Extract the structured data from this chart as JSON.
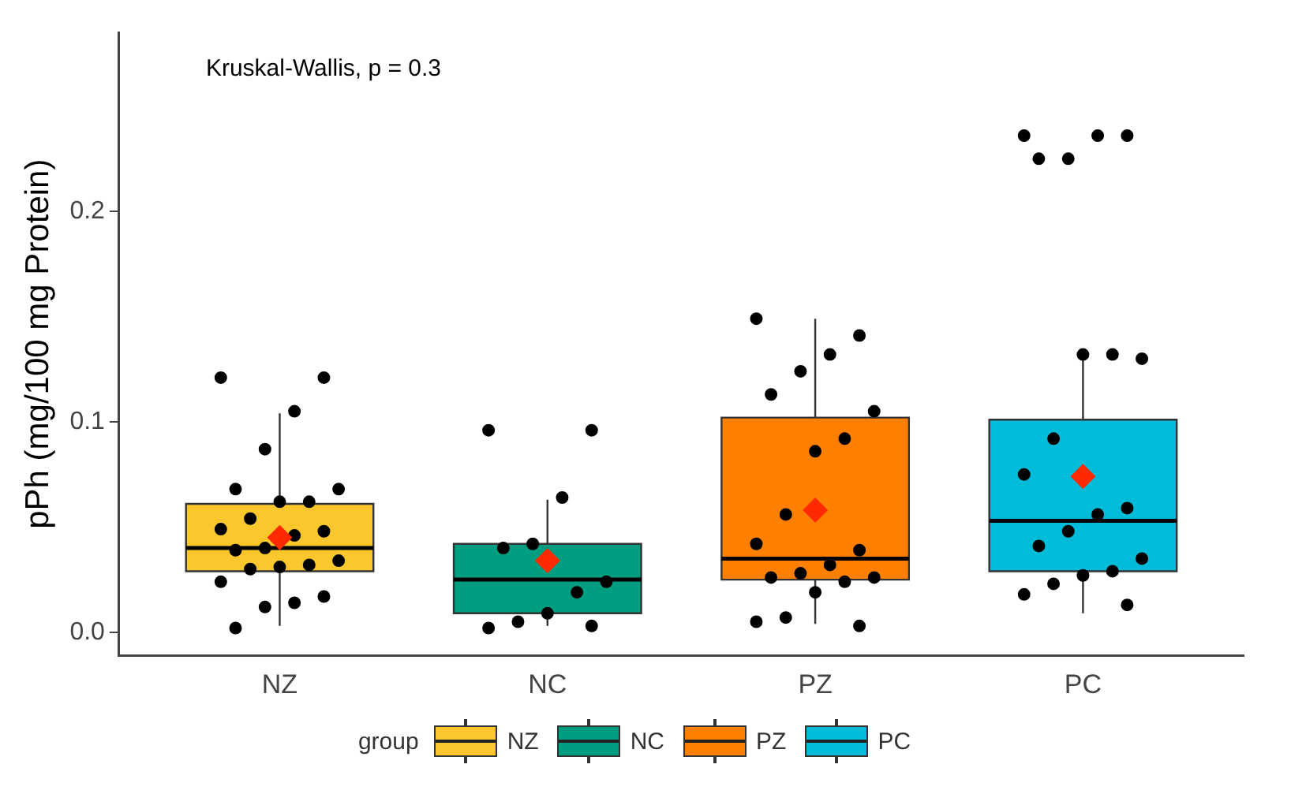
{
  "chart_data": {
    "type": "box",
    "categories": [
      "NZ",
      "NC",
      "PZ",
      "PC"
    ],
    "series": [
      {
        "type": "box",
        "name": "NZ",
        "color": "#fcc72c",
        "boxes": [
          {
            "low": 0.003,
            "q1": 0.029,
            "median": 0.04,
            "q3": 0.061,
            "high": 0.104,
            "mean": 0.045
          },
          null,
          null,
          null
        ]
      },
      {
        "type": "box",
        "name": "NC",
        "color": "#009e80",
        "boxes": [
          null,
          {
            "low": 0.003,
            "q1": 0.009,
            "median": 0.025,
            "q3": 0.042,
            "high": 0.063,
            "mean": 0.034
          },
          null,
          null
        ]
      },
      {
        "type": "box",
        "name": "PZ",
        "color": "#ff7f00",
        "boxes": [
          null,
          null,
          {
            "low": 0.004,
            "q1": 0.025,
            "median": 0.035,
            "q3": 0.102,
            "high": 0.149,
            "mean": 0.058
          },
          null
        ]
      },
      {
        "type": "box",
        "name": "PC",
        "color": "#00bcd8",
        "boxes": [
          null,
          null,
          null,
          {
            "low": 0.009,
            "q1": 0.029,
            "median": 0.053,
            "q3": 0.101,
            "high": 0.132,
            "mean": 0.074
          }
        ]
      },
      {
        "type": "scatter",
        "color": "#000000",
        "x": [
          "NZ",
          "NZ",
          "NZ",
          "NZ",
          "NZ",
          "NZ",
          "NZ",
          "NZ",
          "NZ",
          "NZ",
          "NZ",
          "NZ",
          "NZ",
          "NZ",
          "NZ",
          "NZ",
          "NZ",
          "NZ",
          "NZ",
          "NZ",
          "NZ",
          "NZ",
          "NZ",
          "NC",
          "NC",
          "NC",
          "NC",
          "NC",
          "NC",
          "NC",
          "NC",
          "NC",
          "NC",
          "NC",
          "PZ",
          "PZ",
          "PZ",
          "PZ",
          "PZ",
          "PZ",
          "PZ",
          "PZ",
          "PZ",
          "PZ",
          "PZ",
          "PZ",
          "PZ",
          "PZ",
          "PZ",
          "PZ",
          "PZ",
          "PZ",
          "PZ",
          "PZ",
          "PC",
          "PC",
          "PC",
          "PC",
          "PC",
          "PC",
          "PC",
          "PC",
          "PC",
          "PC",
          "PC",
          "PC",
          "PC",
          "PC",
          "PC",
          "PC",
          "PC",
          "PC",
          "PC",
          "PC"
        ],
        "values": [
          0.121,
          0.121,
          0.105,
          0.087,
          0.068,
          0.068,
          0.062,
          0.062,
          0.054,
          0.049,
          0.048,
          0.046,
          0.04,
          0.039,
          0.034,
          0.032,
          0.031,
          0.03,
          0.024,
          0.017,
          0.014,
          0.012,
          0.002,
          0.096,
          0.096,
          0.064,
          0.042,
          0.04,
          0.024,
          0.019,
          0.009,
          0.005,
          0.002,
          0.003,
          0.149,
          0.141,
          0.132,
          0.124,
          0.113,
          0.105,
          0.092,
          0.086,
          0.056,
          0.042,
          0.039,
          0.032,
          0.028,
          0.026,
          0.026,
          0.024,
          0.019,
          0.007,
          0.005,
          0.003,
          0.236,
          0.236,
          0.236,
          0.225,
          0.225,
          0.13,
          0.132,
          0.132,
          0.092,
          0.075,
          0.059,
          0.056,
          0.048,
          0.041,
          0.035,
          0.029,
          0.027,
          0.023,
          0.018,
          0.013
        ]
      }
    ],
    "ylabel": "pPh (mg/100 mg Protein)",
    "ylim": [
      -0.011,
      0.285
    ],
    "yticks": [
      {
        "value": 0,
        "label": "0.0"
      },
      {
        "value": 0.1,
        "label": "0.1"
      },
      {
        "value": 0.2,
        "label": "0.2"
      }
    ],
    "annotations": [
      "Kruskal-Wallis, p = 0.3"
    ],
    "legend": "bottom",
    "legend_title": "group",
    "grid": false,
    "marker": "circle"
  }
}
